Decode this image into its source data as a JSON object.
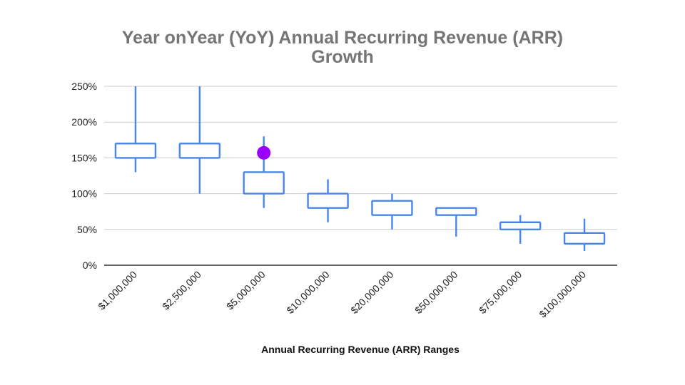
{
  "chart_data": {
    "type": "candlestick",
    "title_lines": [
      "Year onYear (YoY) Annual Recurring Revenue (ARR)",
      "Growth"
    ],
    "xlabel": "Annual Recurring Revenue (ARR) Ranges",
    "ylabel": "",
    "ylim": [
      0,
      250
    ],
    "y_ticks": [
      0,
      50,
      100,
      150,
      200,
      250
    ],
    "y_tick_labels": [
      "0%",
      "50%",
      "100%",
      "150%",
      "200%",
      "250%"
    ],
    "grid": true,
    "categories": [
      "$1,000,000",
      "$2,500,000",
      "$5,000,000",
      "$10,000,000",
      "$20,000,000",
      "$50,000,000",
      "$75,000,000",
      "$100,000,000"
    ],
    "low": [
      130,
      100,
      80,
      60,
      50,
      40,
      30,
      20
    ],
    "q1": [
      150,
      150,
      100,
      80,
      70,
      70,
      50,
      30
    ],
    "q3": [
      170,
      170,
      130,
      100,
      90,
      80,
      60,
      45
    ],
    "high": [
      250,
      250,
      180,
      120,
      100,
      80,
      70,
      65
    ],
    "highlight_point": {
      "category": "$5,000,000",
      "value": 157
    },
    "colors": {
      "box": "#4a86e8",
      "highlight": "#9900ff",
      "grid": "#cccccc",
      "axis": "#333333",
      "title": "#757575"
    }
  }
}
